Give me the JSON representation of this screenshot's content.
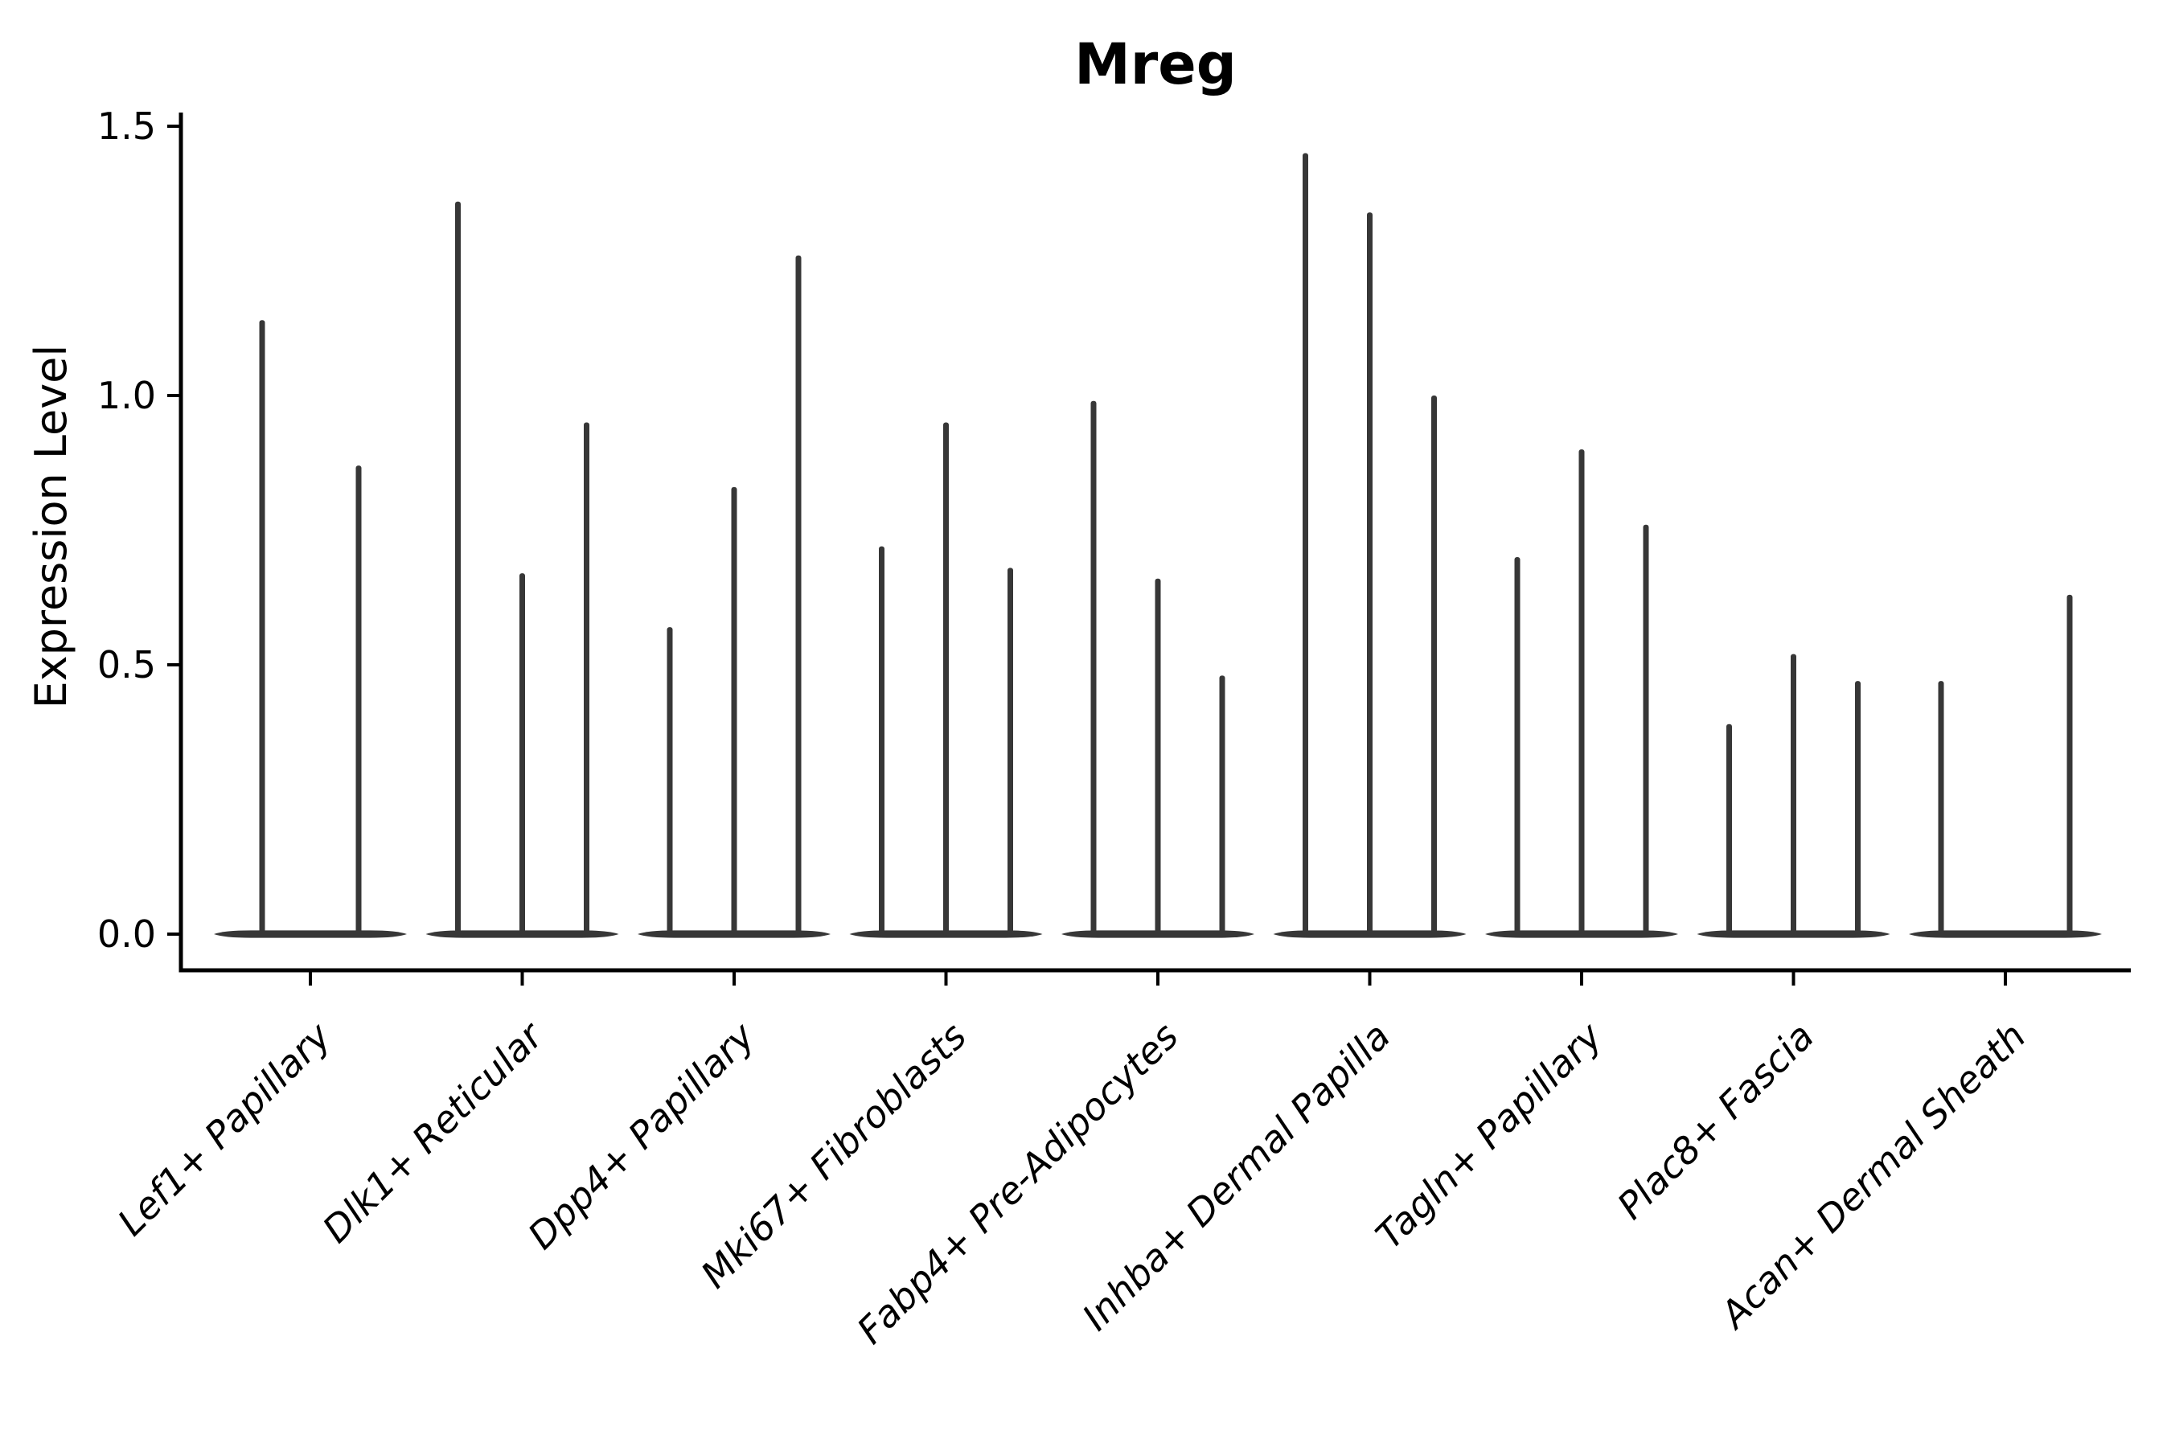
{
  "figure": {
    "background_color": "#ffffff",
    "text_color": "#000000"
  },
  "chart_data": {
    "type": "violin",
    "title": "Mreg",
    "xlabel": "",
    "ylabel": "Expression Level",
    "ylim": [
      0.0,
      1.5
    ],
    "y_tick_values": [
      0.0,
      0.5,
      1.0,
      1.5
    ],
    "y_tick_labels": [
      "0.0",
      "0.5",
      "1.0",
      "1.5"
    ],
    "grid": false,
    "legend": "none",
    "violin_color": "#373737",
    "axis_color": "#000000",
    "categories": [
      "Lef1+ Papillary",
      "Dlk1+ Reticular",
      "Dpp4+ Papillary",
      "Mki67+ Fibroblasts",
      "Fabp4+ Pre-Adipocytes",
      "Inhba+ Dermal Papilla",
      "Tagln+ Papillary",
      "Plac8+ Fascia",
      "Acan+ Dermal Sheath"
    ],
    "groups": [
      {
        "category": "Lef1+ Papillary",
        "violin_peak_values": [
          1.14,
          0.87
        ]
      },
      {
        "category": "Dlk1+ Reticular",
        "violin_peak_values": [
          1.36,
          0.67,
          0.95
        ]
      },
      {
        "category": "Dpp4+ Papillary",
        "violin_peak_values": [
          0.57,
          0.83,
          1.26
        ]
      },
      {
        "category": "Mki67+ Fibroblasts",
        "violin_peak_values": [
          0.72,
          0.95,
          0.68
        ]
      },
      {
        "category": "Fabp4+ Pre-Adipocytes",
        "violin_peak_values": [
          0.99,
          0.66,
          0.48
        ]
      },
      {
        "category": "Inhba+ Dermal Papilla",
        "violin_peak_values": [
          1.45,
          1.34,
          1.0
        ]
      },
      {
        "category": "Tagln+ Papillary",
        "violin_peak_values": [
          0.7,
          0.9,
          0.76
        ]
      },
      {
        "category": "Plac8+ Fascia",
        "violin_peak_values": [
          0.39,
          0.52,
          0.47
        ]
      },
      {
        "category": "Acan+ Dermal Sheath",
        "violin_peak_values": [
          0.47,
          0.0,
          0.63
        ]
      }
    ]
  }
}
